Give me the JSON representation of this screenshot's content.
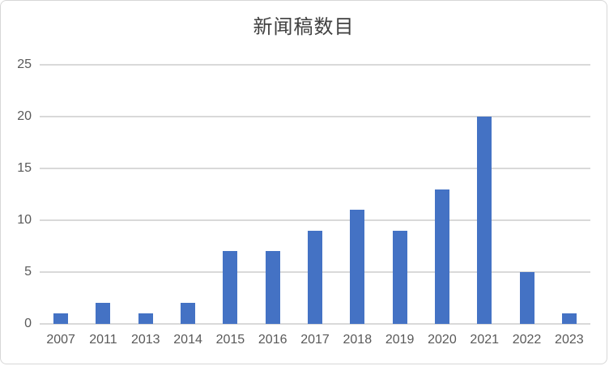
{
  "chart_title": "新闻稿数目",
  "chart_data": {
    "type": "bar",
    "title": "新闻稿数目",
    "categories": [
      "2007",
      "2011",
      "2013",
      "2014",
      "2015",
      "2016",
      "2017",
      "2018",
      "2019",
      "2020",
      "2021",
      "2022",
      "2023"
    ],
    "values": [
      1,
      2,
      1,
      2,
      7,
      7,
      9,
      11,
      9,
      13,
      20,
      5,
      1
    ],
    "xlabel": "",
    "ylabel": "",
    "ylim": [
      0,
      25
    ],
    "ytick_step": 5,
    "yticks": [
      0,
      5,
      10,
      15,
      20,
      25
    ],
    "grid": true,
    "legend": false,
    "bar_color": "#4472C4",
    "gridline_color": "#D9D9D9",
    "axis_label_color": "#595959",
    "title_color": "#404040",
    "border_color": "#D7D7D7"
  }
}
